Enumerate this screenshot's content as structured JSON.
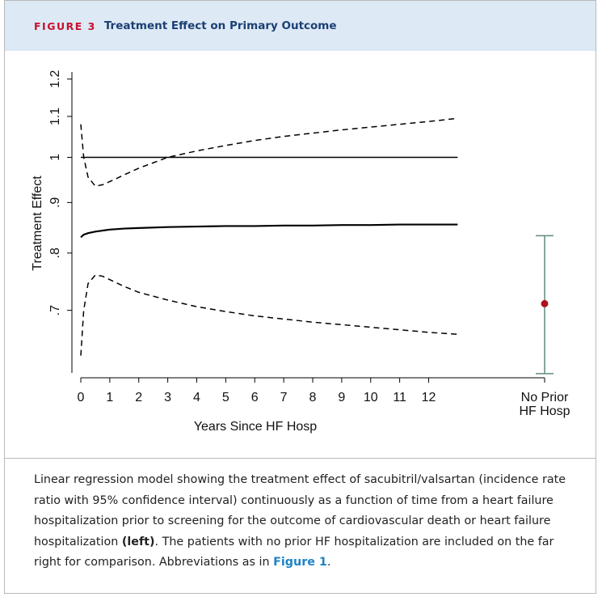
{
  "header": {
    "label": "FIGURE 3",
    "title": "Treatment Effect on Primary Outcome"
  },
  "chart_data": {
    "type": "line",
    "ylabel": "Treatment Effect",
    "xlabel": "Years Since HF Hosp",
    "ylog": true,
    "ylim": [
      0.605,
      1.22
    ],
    "yticks": [
      {
        "value": 0.7,
        "label": ".7"
      },
      {
        "value": 0.8,
        "label": ".8"
      },
      {
        "value": 0.9,
        "label": ".9"
      },
      1,
      1.1,
      1.2
    ],
    "xlim": [
      0,
      16
    ],
    "xticks": [
      0,
      1,
      2,
      3,
      4,
      5,
      6,
      7,
      8,
      9,
      10,
      11,
      12
    ],
    "reference": 1,
    "reference_color": "#000000",
    "x": [
      0,
      0.1,
      0.25,
      0.5,
      0.75,
      1,
      1.5,
      2,
      3,
      4,
      5,
      6,
      7,
      8,
      9,
      10,
      11,
      12,
      13
    ],
    "series": [
      {
        "color": "#000000",
        "dashed": false,
        "values": [
          0.83,
          0.835,
          0.838,
          0.841,
          0.843,
          0.845,
          0.847,
          0.848,
          0.85,
          0.851,
          0.852,
          0.852,
          0.853,
          0.853,
          0.854,
          0.854,
          0.855,
          0.855,
          0.855
        ]
      },
      {
        "color": "#000000",
        "dashed": true,
        "values": [
          1.08,
          1.0,
          0.955,
          0.935,
          0.938,
          0.945,
          0.96,
          0.975,
          1.0,
          1.015,
          1.028,
          1.04,
          1.05,
          1.058,
          1.066,
          1.073,
          1.08,
          1.087,
          1.095
        ]
      },
      {
        "color": "#000000",
        "dashed": true,
        "values": [
          0.63,
          0.7,
          0.745,
          0.76,
          0.758,
          0.752,
          0.74,
          0.73,
          0.717,
          0.706,
          0.698,
          0.691,
          0.686,
          0.681,
          0.677,
          0.673,
          0.669,
          0.665,
          0.662
        ]
      }
    ],
    "comparison": {
      "label": [
        "No Prior",
        "HF Hosp"
      ],
      "estimate": 0.711,
      "lower": 0.604,
      "upper": 0.833,
      "color": "#b0121b",
      "bar_color": "#5f8c7c"
    }
  },
  "caption": [
    "Linear regression model showing the treatment effect of sacubitril/valsartan (incidence rate ratio with 95% confidence interval) continuously as a function of time from a heart failure hospitalization prior to screening for the outcome of cardiovascular death or heart failure hospitalization ",
    "(left)",
    ". The patients with no prior HF hospitalization are included on the far right for comparison. Abbreviations as in ",
    "Figure 1",
    "."
  ]
}
